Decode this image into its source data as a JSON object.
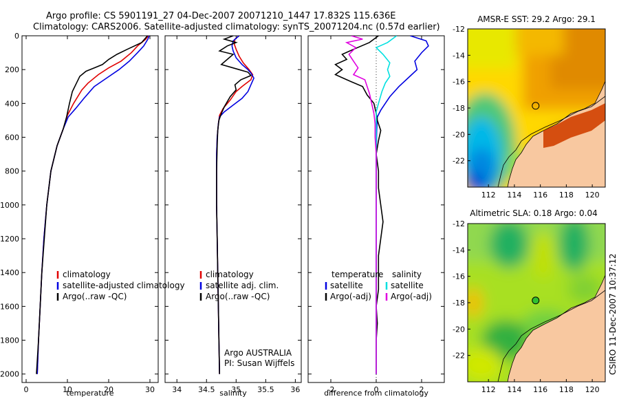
{
  "title_line1": "Argo profile: CS 5901191_27 04-Dec-2007 20071210_1447 17.832S 115.636E",
  "title_line2": "Climatology: CARS2006. Satellite-adjusted climatology: synTS_20071204.nc (0.57d earlier)",
  "side_label": "CSIRO 11-Dec-2007 10:37:12",
  "chart_data": [
    {
      "type": "line",
      "xlabel": "temperature",
      "xlim": [
        -1,
        32
      ],
      "ylim": [
        0,
        2050
      ],
      "xticks": [
        0,
        10,
        20,
        30
      ],
      "yticks": [
        0,
        200,
        400,
        600,
        800,
        1000,
        1200,
        1400,
        1600,
        1800,
        2000
      ],
      "yaxis_reversed": true,
      "legend": {
        "placement": "lower-center",
        "entries": [
          {
            "label": "climatology",
            "color": "#e00000"
          },
          {
            "label": "satellite-adjusted climatology",
            "color": "#0000e0"
          },
          {
            "label": "Argo(..raw -QC)",
            "color": "#000000"
          }
        ]
      },
      "series": [
        {
          "name": "climatology",
          "color": "#e00000",
          "points": [
            [
              29.6,
              0
            ],
            [
              29,
              20
            ],
            [
              27,
              60
            ],
            [
              25.5,
              100
            ],
            [
              23,
              150
            ],
            [
              20,
              190
            ],
            [
              17.5,
              230
            ],
            [
              15,
              280
            ],
            [
              13.5,
              320
            ],
            [
              11.5,
              400
            ],
            [
              10,
              470
            ],
            [
              9,
              550
            ],
            [
              7.5,
              650
            ],
            [
              6,
              800
            ],
            [
              5,
              1000
            ],
            [
              4.3,
              1200
            ],
            [
              3.8,
              1400
            ],
            [
              3.4,
              1600
            ],
            [
              3,
              1800
            ],
            [
              2.7,
              2000
            ]
          ]
        },
        {
          "name": "satellite-adjusted climatology",
          "color": "#0000e0",
          "points": [
            [
              29.8,
              0
            ],
            [
              29.5,
              20
            ],
            [
              28.5,
              60
            ],
            [
              27,
              100
            ],
            [
              25,
              150
            ],
            [
              22.5,
              200
            ],
            [
              19.5,
              250
            ],
            [
              16.5,
              300
            ],
            [
              14,
              370
            ],
            [
              12,
              430
            ],
            [
              10.2,
              480
            ],
            [
              9,
              550
            ],
            [
              7.5,
              650
            ],
            [
              6,
              800
            ],
            [
              5,
              1000
            ],
            [
              4.3,
              1200
            ],
            [
              3.8,
              1400
            ],
            [
              3.4,
              1600
            ],
            [
              3,
              1800
            ],
            [
              2.7,
              2000
            ]
          ]
        },
        {
          "name": "Argo(..raw -QC)",
          "color": "#000000",
          "points": [
            [
              29.4,
              0
            ],
            [
              28,
              40
            ],
            [
              24.5,
              80
            ],
            [
              22,
              110
            ],
            [
              20,
              140
            ],
            [
              18.5,
              170
            ],
            [
              16.5,
              190
            ],
            [
              14.5,
              210
            ],
            [
              13,
              240
            ],
            [
              12.2,
              280
            ],
            [
              11.2,
              330
            ],
            [
              10.5,
              400
            ],
            [
              9.8,
              480
            ],
            [
              9,
              550
            ],
            [
              7.5,
              650
            ],
            [
              6,
              800
            ],
            [
              5,
              1000
            ],
            [
              4.4,
              1200
            ],
            [
              3.8,
              1400
            ],
            [
              3.4,
              1600
            ],
            [
              3,
              1800
            ],
            [
              2.5,
              2000
            ]
          ]
        }
      ]
    },
    {
      "type": "line",
      "xlabel": "salinity",
      "xlim": [
        33.8,
        36.1
      ],
      "ylim": [
        0,
        2050
      ],
      "xticks": [
        34,
        34.5,
        35,
        35.5,
        36
      ],
      "yaxis_reversed": true,
      "legend": {
        "placement": "lower-center",
        "entries": [
          {
            "label": "climatology",
            "color": "#e00000"
          },
          {
            "label": "satellite adj. clim.",
            "color": "#0000e0"
          },
          {
            "label": "Argo(..raw -QC)",
            "color": "#000000"
          }
        ]
      },
      "annotation_lines": [
        "Argo AUSTRALIA",
        "PI: Susan Wijffels"
      ],
      "series": [
        {
          "name": "climatology",
          "color": "#e00000",
          "points": [
            [
              35.05,
              0
            ],
            [
              34.98,
              20
            ],
            [
              34.97,
              50
            ],
            [
              35.0,
              80
            ],
            [
              35.05,
              120
            ],
            [
              35.12,
              160
            ],
            [
              35.22,
              200
            ],
            [
              35.28,
              230
            ],
            [
              35.25,
              260
            ],
            [
              35.1,
              300
            ],
            [
              35.0,
              330
            ],
            [
              34.9,
              380
            ],
            [
              34.78,
              430
            ],
            [
              34.72,
              470
            ],
            [
              34.7,
              520
            ],
            [
              34.68,
              600
            ],
            [
              34.67,
              700
            ],
            [
              34.67,
              800
            ],
            [
              34.67,
              1000
            ],
            [
              34.68,
              1200
            ],
            [
              34.69,
              1400
            ],
            [
              34.7,
              1600
            ],
            [
              34.71,
              1800
            ],
            [
              34.72,
              2000
            ]
          ]
        },
        {
          "name": "satellite adj. clim.",
          "color": "#0000e0",
          "points": [
            [
              35.05,
              0
            ],
            [
              34.95,
              30
            ],
            [
              34.93,
              60
            ],
            [
              34.95,
              90
            ],
            [
              35.0,
              130
            ],
            [
              35.1,
              170
            ],
            [
              35.2,
              200
            ],
            [
              35.25,
              220
            ],
            [
              35.3,
              250
            ],
            [
              35.25,
              290
            ],
            [
              35.2,
              330
            ],
            [
              35.1,
              370
            ],
            [
              34.95,
              410
            ],
            [
              34.8,
              450
            ],
            [
              34.72,
              480
            ],
            [
              34.7,
              520
            ],
            [
              34.68,
              600
            ],
            [
              34.67,
              700
            ],
            [
              34.67,
              800
            ],
            [
              34.67,
              1000
            ],
            [
              34.68,
              1200
            ],
            [
              34.69,
              1400
            ],
            [
              34.7,
              1600
            ],
            [
              34.71,
              1800
            ],
            [
              34.72,
              2000
            ]
          ]
        },
        {
          "name": "Argo(..raw -QC)",
          "color": "#000000",
          "points": [
            [
              34.95,
              0
            ],
            [
              34.8,
              20
            ],
            [
              35.0,
              40
            ],
            [
              34.85,
              60
            ],
            [
              34.72,
              90
            ],
            [
              34.95,
              110
            ],
            [
              34.85,
              140
            ],
            [
              34.75,
              170
            ],
            [
              35.05,
              200
            ],
            [
              35.2,
              215
            ],
            [
              35.25,
              235
            ],
            [
              35.08,
              260
            ],
            [
              34.98,
              290
            ],
            [
              35.0,
              320
            ],
            [
              34.9,
              360
            ],
            [
              34.8,
              420
            ],
            [
              34.75,
              460
            ],
            [
              34.71,
              500
            ],
            [
              34.69,
              560
            ],
            [
              34.68,
              650
            ],
            [
              34.67,
              800
            ],
            [
              34.67,
              1000
            ],
            [
              34.68,
              1200
            ],
            [
              34.69,
              1400
            ],
            [
              34.7,
              1600
            ],
            [
              34.71,
              1800
            ],
            [
              34.72,
              2000
            ]
          ]
        }
      ]
    },
    {
      "type": "line",
      "xlabel": "difference from climatology",
      "xlim": [
        -3,
        3
      ],
      "ylim": [
        0,
        2050
      ],
      "xticks": [
        -2,
        0,
        2
      ],
      "yaxis_reversed": true,
      "zero_line": "dotted",
      "legend": {
        "placement": "lower-center",
        "headers": [
          "temperature",
          "salinity"
        ],
        "entries": [
          {
            "label": "satellite",
            "color": "#0000e0",
            "column": 0
          },
          {
            "label": "Argo(-adj)",
            "color": "#000000",
            "column": 0
          },
          {
            "label": "satellite",
            "color": "#00e0e0",
            "column": 1
          },
          {
            "label": "Argo(-adj)",
            "color": "#e000e0",
            "column": 1
          }
        ]
      },
      "series": [
        {
          "name": "temperature satellite",
          "color": "#0000e0",
          "points": [
            [
              1.5,
              0
            ],
            [
              2.2,
              30
            ],
            [
              2.3,
              60
            ],
            [
              2.0,
              100
            ],
            [
              1.7,
              150
            ],
            [
              1.8,
              200
            ],
            [
              1.4,
              250
            ],
            [
              1.0,
              300
            ],
            [
              0.6,
              360
            ],
            [
              0.4,
              400
            ],
            [
              0.2,
              440
            ],
            [
              0.05,
              480
            ],
            [
              0.02,
              560
            ],
            [
              0.0,
              700
            ],
            [
              0.0,
              1000
            ],
            [
              0.0,
              1400
            ],
            [
              0.0,
              2000
            ]
          ]
        },
        {
          "name": "temperature Argo(-adj)",
          "color": "#000000",
          "points": [
            [
              0.1,
              0
            ],
            [
              -0.3,
              40
            ],
            [
              -1.0,
              80
            ],
            [
              -1.5,
              110
            ],
            [
              -1.3,
              140
            ],
            [
              -1.8,
              170
            ],
            [
              -1.5,
              200
            ],
            [
              -1.8,
              230
            ],
            [
              -1.3,
              260
            ],
            [
              -0.6,
              300
            ],
            [
              -0.4,
              350
            ],
            [
              -0.1,
              400
            ],
            [
              0.0,
              460
            ],
            [
              0.05,
              500
            ],
            [
              0.2,
              560
            ],
            [
              0.1,
              620
            ],
            [
              0.0,
              700
            ],
            [
              0.1,
              800
            ],
            [
              0.1,
              900
            ],
            [
              0.2,
              1000
            ],
            [
              0.3,
              1100
            ],
            [
              0.2,
              1200
            ],
            [
              0.1,
              1300
            ],
            [
              0.1,
              1400
            ],
            [
              0.1,
              1500
            ],
            [
              0.0,
              1600
            ],
            [
              0.05,
              1700
            ],
            [
              0.0,
              1800
            ],
            [
              0.0,
              1900
            ],
            [
              0.0,
              2000
            ]
          ]
        },
        {
          "name": "salinity satellite",
          "color": "#00e0e0",
          "points": [
            [
              0.9,
              0
            ],
            [
              0.5,
              40
            ],
            [
              0.0,
              70
            ],
            [
              0.3,
              110
            ],
            [
              0.6,
              160
            ],
            [
              0.5,
              200
            ],
            [
              0.6,
              240
            ],
            [
              0.4,
              280
            ],
            [
              0.25,
              330
            ],
            [
              0.1,
              400
            ],
            [
              0.0,
              450
            ],
            [
              0.0,
              600
            ],
            [
              0.0,
              1000
            ],
            [
              0.0,
              1500
            ],
            [
              0.0,
              2000
            ]
          ]
        },
        {
          "name": "salinity Argo(-adj)",
          "color": "#e000e0",
          "points": [
            [
              -1.1,
              0
            ],
            [
              -0.6,
              20
            ],
            [
              -1.3,
              40
            ],
            [
              -0.9,
              70
            ],
            [
              -1.2,
              110
            ],
            [
              -1.0,
              150
            ],
            [
              -0.8,
              190
            ],
            [
              -1.0,
              230
            ],
            [
              -0.5,
              260
            ],
            [
              -0.4,
              300
            ],
            [
              -0.3,
              340
            ],
            [
              -0.2,
              400
            ],
            [
              -0.1,
              460
            ],
            [
              -0.05,
              520
            ],
            [
              -0.05,
              600
            ],
            [
              0.0,
              700
            ],
            [
              0.0,
              1000
            ],
            [
              0.0,
              1500
            ],
            [
              0.0,
              2000
            ]
          ]
        }
      ]
    },
    {
      "type": "heatmap",
      "title": "AMSR-E SST: 29.2  Argo: 29.1",
      "xticks": [
        112,
        114,
        116,
        118,
        120
      ],
      "yticks": [
        -12,
        -14,
        -16,
        -18,
        -20,
        -22
      ],
      "xlim": [
        110.4,
        121
      ],
      "ylim": [
        -24,
        -12
      ],
      "argo_marker": {
        "lon": 115.636,
        "lat": -17.832,
        "fill": "none"
      }
    },
    {
      "type": "heatmap",
      "title": "Altimetric SLA: 0.18  Argo: 0.04",
      "xticks": [
        112,
        114,
        116,
        118,
        120
      ],
      "yticks": [
        -12,
        -14,
        -16,
        -18,
        -20,
        -22
      ],
      "xlim": [
        110.4,
        121
      ],
      "ylim": [
        -24,
        -12
      ],
      "argo_marker": {
        "lon": 115.636,
        "lat": -17.832,
        "fill": "#30c030"
      }
    }
  ]
}
